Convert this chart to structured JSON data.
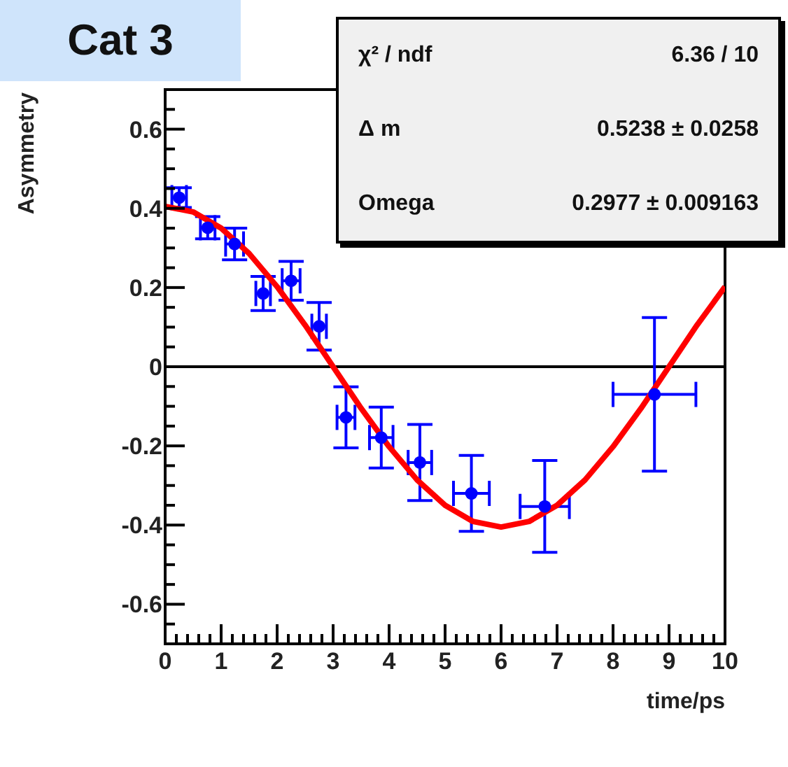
{
  "chart_data": {
    "type": "scatter",
    "title": "Cat 3",
    "xlabel": "time/ps",
    "ylabel": "Asymmetry",
    "annotations": [
      "χ² / ndf",
      "6.36 / 10",
      "Δ m",
      "0.5238 ± 0.0258",
      "Omega",
      "0.2977 ± 0.009163"
    ],
    "xlim": [
      0,
      10
    ],
    "ylim": [
      -0.7,
      0.7
    ],
    "xticks": [
      0,
      {
        "value": 0.2,
        "label": null
      },
      {
        "value": 0.4,
        "label": null
      },
      {
        "value": 0.6,
        "label": null
      },
      {
        "value": 0.8,
        "label": null
      },
      1,
      {
        "value": 1.2,
        "label": null
      },
      {
        "value": 1.4,
        "label": null
      },
      {
        "value": 1.6,
        "label": null
      },
      {
        "value": 1.8,
        "label": null
      },
      2,
      {
        "value": 2.2,
        "label": null
      },
      {
        "value": 2.4,
        "label": null
      },
      {
        "value": 2.6,
        "label": null
      },
      {
        "value": 2.8,
        "label": null
      },
      3,
      {
        "value": 3.2,
        "label": null
      },
      {
        "value": 3.4,
        "label": null
      },
      {
        "value": 3.6,
        "label": null
      },
      {
        "value": 3.8,
        "label": null
      },
      4,
      {
        "value": 4.2,
        "label": null
      },
      {
        "value": 4.4,
        "label": null
      },
      {
        "value": 4.6,
        "label": null
      },
      {
        "value": 4.8,
        "label": null
      },
      5,
      {
        "value": 5.2,
        "label": null
      },
      {
        "value": 5.4,
        "label": null
      },
      {
        "value": 5.6,
        "label": null
      },
      {
        "value": 5.8,
        "label": null
      },
      6,
      {
        "value": 6.2,
        "label": null
      },
      {
        "value": 6.4,
        "label": null
      },
      {
        "value": 6.6,
        "label": null
      },
      {
        "value": 6.8,
        "label": null
      },
      7,
      {
        "value": 7.2,
        "label": null
      },
      {
        "value": 7.4,
        "label": null
      },
      {
        "value": 7.6,
        "label": null
      },
      {
        "value": 7.8,
        "label": null
      },
      8,
      {
        "value": 8.2,
        "label": null
      },
      {
        "value": 8.4,
        "label": null
      },
      {
        "value": 8.6,
        "label": null
      },
      {
        "value": 8.8,
        "label": null
      },
      9,
      {
        "value": 9.2,
        "label": null
      },
      {
        "value": 9.4,
        "label": null
      },
      {
        "value": 9.6,
        "label": null
      },
      {
        "value": 9.8,
        "label": null
      },
      10
    ],
    "yticks": [
      {
        "value": -0.65,
        "label": null
      },
      -0.6,
      {
        "value": -0.55,
        "label": null
      },
      {
        "value": -0.5,
        "label": null
      },
      {
        "value": -0.45,
        "label": null
      },
      -0.4,
      {
        "value": -0.35,
        "label": null
      },
      {
        "value": -0.3,
        "label": null
      },
      {
        "value": -0.25,
        "label": null
      },
      -0.2,
      {
        "value": -0.15,
        "label": null
      },
      {
        "value": -0.1,
        "label": null
      },
      {
        "value": -0.05,
        "label": null
      },
      0,
      {
        "value": 0.05,
        "label": null
      },
      {
        "value": 0.1,
        "label": null
      },
      {
        "value": 0.15,
        "label": null
      },
      0.2,
      {
        "value": 0.25,
        "label": null
      },
      {
        "value": 0.3,
        "label": null
      },
      {
        "value": 0.35,
        "label": null
      },
      0.4,
      {
        "value": 0.45,
        "label": null
      },
      {
        "value": 0.5,
        "label": null
      },
      {
        "value": 0.55,
        "label": null
      },
      0.6,
      {
        "value": 0.65,
        "label": null
      }
    ],
    "ref_lines": [
      {
        "axis": "y",
        "value": 0,
        "color": "#000000"
      }
    ],
    "series": [
      {
        "color": "#0000ff",
        "marker": "circle",
        "x": [
          0.25,
          0.76,
          1.24,
          1.75,
          2.25,
          2.75,
          3.23,
          3.86,
          4.55,
          5.47,
          6.78,
          8.74
        ],
        "values": [
          0.427,
          0.351,
          0.31,
          0.185,
          0.217,
          0.102,
          -0.128,
          -0.179,
          -0.242,
          -0.32,
          -0.353,
          -0.07
        ],
        "errors": [
          0.025,
          0.028,
          0.04,
          0.043,
          0.049,
          0.06,
          0.077,
          0.077,
          0.096,
          0.096,
          0.116,
          0.194
        ],
        "xerrors": [
          0.13,
          0.13,
          0.16,
          0.13,
          0.16,
          0.13,
          0.16,
          0.21,
          0.21,
          0.32,
          0.44,
          0.74
        ]
      },
      {
        "type": "line",
        "color": "#ff0000",
        "marker": "none",
        "line_style": "solid",
        "x": [
          0,
          0.5,
          1,
          1.5,
          2,
          2.5,
          3,
          3.5,
          4,
          4.5,
          5,
          5.5,
          6,
          6.5,
          7,
          7.5,
          8,
          8.5,
          9,
          9.5,
          10
        ],
        "values": [
          0.405,
          0.391,
          0.35,
          0.286,
          0.202,
          0.105,
          0,
          -0.105,
          -0.202,
          -0.286,
          -0.35,
          -0.391,
          -0.405,
          -0.391,
          -0.35,
          -0.286,
          -0.202,
          -0.105,
          0,
          0.105,
          0.202
        ]
      }
    ]
  }
}
